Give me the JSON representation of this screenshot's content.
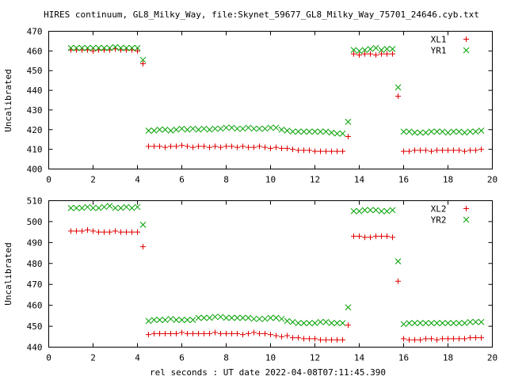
{
  "title": "HIRES continuum, GL8_Milky_Way, file:Skynet_59677_GL8_Milky_Way_75701_24646.cyb.txt",
  "xlabel": "rel seconds : UT date 2022-04-08T07:11:45.390",
  "colors": {
    "XL": "#e00000",
    "YR": "#00a000"
  },
  "chart_data": [
    {
      "type": "scatter",
      "ylabel": "Uncalibrated",
      "xlim": [
        0,
        20
      ],
      "ylim": [
        400,
        470
      ],
      "xticks": [
        0,
        2,
        4,
        6,
        8,
        10,
        12,
        14,
        16,
        18,
        20
      ],
      "yticks": [
        400,
        410,
        420,
        430,
        440,
        450,
        460,
        470
      ],
      "legend_position": "top-right",
      "x": [
        1.0,
        1.25,
        1.5,
        1.75,
        2.0,
        2.25,
        2.5,
        2.75,
        3.0,
        3.25,
        3.5,
        3.75,
        4.0,
        4.25,
        4.5,
        4.75,
        5.0,
        5.25,
        5.5,
        5.75,
        6.0,
        6.25,
        6.5,
        6.75,
        7.0,
        7.25,
        7.5,
        7.75,
        8.0,
        8.25,
        8.5,
        8.75,
        9.0,
        9.25,
        9.5,
        9.75,
        10.0,
        10.25,
        10.5,
        10.75,
        11.0,
        11.25,
        11.5,
        11.75,
        12.0,
        12.25,
        12.5,
        12.75,
        13.0,
        13.25,
        13.5,
        13.75,
        14.0,
        14.25,
        14.5,
        14.75,
        15.0,
        15.25,
        15.5,
        15.75,
        16.0,
        16.25,
        16.5,
        16.75,
        17.0,
        17.25,
        17.5,
        17.75,
        18.0,
        18.25,
        18.5,
        18.75,
        19.0,
        19.25,
        19.5
      ],
      "series": [
        {
          "name": "XL1",
          "marker": "plus",
          "values": [
            460.5,
            460.5,
            460.5,
            460.5,
            460,
            460.5,
            460.5,
            460.5,
            461,
            460.5,
            460.5,
            460.5,
            460,
            453.5,
            411.5,
            411.5,
            411.5,
            411,
            411.5,
            411.5,
            412,
            411.5,
            411,
            411.5,
            411.5,
            411,
            411.5,
            411,
            411.5,
            411.5,
            411,
            411.5,
            411,
            411,
            411.5,
            411,
            410.5,
            411,
            410.5,
            410.5,
            410,
            409.5,
            409.5,
            409.5,
            409,
            409,
            409,
            409,
            409,
            409,
            416.5,
            458.5,
            458,
            458.5,
            458.5,
            458,
            458.5,
            458.5,
            458.5,
            437,
            409,
            409,
            409.5,
            409.5,
            409.5,
            409,
            409.5,
            409.5,
            409.5,
            409.5,
            409.5,
            409,
            409.5,
            409.5,
            410
          ]
        },
        {
          "name": "YR1",
          "marker": "cross",
          "values": [
            461.5,
            461.5,
            461.5,
            461.5,
            461.5,
            461.5,
            461.5,
            461.5,
            462,
            461.5,
            461.5,
            461.5,
            461.5,
            455.5,
            419.5,
            419.5,
            420,
            420,
            419.5,
            420,
            420.5,
            420,
            420.5,
            420,
            420.5,
            420,
            420.5,
            420.5,
            421,
            421,
            420.5,
            420.5,
            421,
            420.5,
            420.5,
            420.5,
            421,
            421,
            420,
            419.5,
            419,
            419,
            419,
            419,
            419,
            419,
            419,
            418.5,
            418,
            418,
            424,
            460.5,
            460,
            460.5,
            461,
            461.5,
            460.5,
            461,
            461,
            441.5,
            419,
            419,
            418.5,
            418.5,
            418.5,
            419,
            419,
            419,
            418.5,
            419,
            419,
            418.5,
            419,
            419,
            419.5
          ]
        }
      ]
    },
    {
      "type": "scatter",
      "ylabel": "Uncalibrated",
      "xlim": [
        0,
        20
      ],
      "ylim": [
        440,
        510
      ],
      "xticks": [
        0,
        2,
        4,
        6,
        8,
        10,
        12,
        14,
        16,
        18,
        20
      ],
      "yticks": [
        440,
        450,
        460,
        470,
        480,
        490,
        500,
        510
      ],
      "legend_position": "top-right",
      "x": [
        1.0,
        1.25,
        1.5,
        1.75,
        2.0,
        2.25,
        2.5,
        2.75,
        3.0,
        3.25,
        3.5,
        3.75,
        4.0,
        4.25,
        4.5,
        4.75,
        5.0,
        5.25,
        5.5,
        5.75,
        6.0,
        6.25,
        6.5,
        6.75,
        7.0,
        7.25,
        7.5,
        7.75,
        8.0,
        8.25,
        8.5,
        8.75,
        9.0,
        9.25,
        9.5,
        9.75,
        10.0,
        10.25,
        10.5,
        10.75,
        11.0,
        11.25,
        11.5,
        11.75,
        12.0,
        12.25,
        12.5,
        12.75,
        13.0,
        13.25,
        13.5,
        13.75,
        14.0,
        14.25,
        14.5,
        14.75,
        15.0,
        15.25,
        15.5,
        15.75,
        16.0,
        16.25,
        16.5,
        16.75,
        17.0,
        17.25,
        17.5,
        17.75,
        18.0,
        18.25,
        18.5,
        18.75,
        19.0,
        19.25,
        19.5
      ],
      "series": [
        {
          "name": "XL2",
          "marker": "plus",
          "values": [
            495.5,
            495.5,
            495.5,
            496,
            495.5,
            495,
            495,
            495,
            495.5,
            495,
            495,
            495,
            495,
            488,
            446,
            446.5,
            446.5,
            446.5,
            446.5,
            446.5,
            447,
            446.5,
            446.5,
            446.5,
            446.5,
            446.5,
            447,
            446.5,
            446.5,
            446.5,
            446.5,
            446,
            446.5,
            447,
            446.5,
            446.5,
            446,
            445.5,
            445,
            445.5,
            444.5,
            444.5,
            444,
            444,
            444,
            443.5,
            443.5,
            443.5,
            443.5,
            443.5,
            450.5,
            493,
            493,
            492.5,
            492.5,
            493,
            493,
            493,
            492.5,
            471.5,
            444,
            443.5,
            443.5,
            443.5,
            444,
            444,
            443.5,
            444,
            444,
            444,
            444,
            444,
            444.5,
            444.5,
            444.5
          ]
        },
        {
          "name": "YR2",
          "marker": "cross",
          "values": [
            506.5,
            506.5,
            506.5,
            507,
            506.5,
            506.5,
            507,
            507.5,
            506.5,
            506.5,
            507,
            506.5,
            507,
            498.5,
            452.5,
            453,
            453,
            453,
            453.5,
            453,
            453,
            453,
            453,
            454,
            454,
            454,
            454.5,
            454.5,
            454,
            454,
            454,
            454,
            454,
            453.5,
            453.5,
            453.5,
            454,
            454,
            453.5,
            452.5,
            452,
            451.5,
            451.5,
            451.5,
            451.5,
            452,
            452,
            451.5,
            451.5,
            451.5,
            459,
            505,
            505,
            505.5,
            505.5,
            505.5,
            505,
            505,
            505.5,
            481,
            451,
            451.5,
            451.5,
            451.5,
            451.5,
            451.5,
            451.5,
            451.5,
            451.5,
            451.5,
            451.5,
            451.5,
            452,
            452,
            452
          ]
        }
      ]
    }
  ]
}
